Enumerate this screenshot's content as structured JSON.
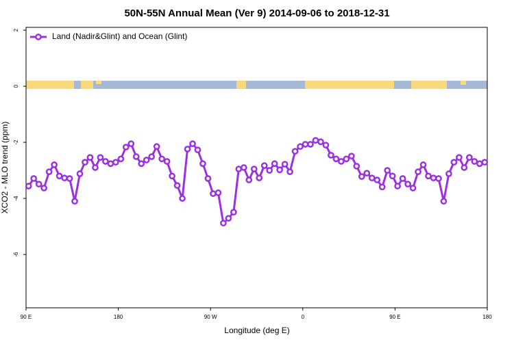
{
  "chart_data": {
    "type": "line",
    "title": "50N-55N Annual Mean (Ver 9)   2014-09-06 to 2018-12-31",
    "x_label": "Longitude (deg E)",
    "y_label": "XCO2 - MLO trend (ppm)",
    "xlim": [
      90,
      540
    ],
    "xticks": [
      {
        "value": 90,
        "label": "90 E"
      },
      180,
      {
        "value": 270,
        "label": "90 W"
      },
      {
        "value": 360,
        "label": "0"
      },
      {
        "value": 450,
        "label": "90 E"
      },
      {
        "value": 540,
        "label": "180"
      }
    ],
    "ylim": [
      -7.9,
      2.1
    ],
    "yticks": [
      2,
      0,
      -2,
      -4,
      -6
    ],
    "legend": "upper left",
    "series": [
      {
        "name": "Land (Nadir&Glint) and Ocean (Glint)",
        "color": "#9b30e0",
        "x": [
          92.5,
          97.5,
          102.5,
          107.5,
          112.5,
          117.5,
          122.5,
          127.5,
          132.5,
          137.5,
          142.5,
          147.5,
          152.5,
          157.5,
          162.5,
          167.5,
          172.5,
          177.5,
          182.5,
          187.5,
          192.5,
          197.5,
          202.5,
          207.5,
          212.5,
          217.5,
          222.5,
          227.5,
          232.5,
          237.5,
          242.5,
          247.5,
          252.5,
          257.5,
          262.5,
          267.5,
          272.5,
          277.5,
          282.5,
          287.5,
          292.5,
          297.5,
          302.5,
          307.5,
          312.5,
          317.5,
          322.5,
          327.5,
          332.5,
          337.5,
          342.5,
          347.5,
          352.5,
          357.5,
          362.5,
          367.5,
          372.5,
          377.5,
          382.5,
          387.5,
          392.5,
          397.5,
          402.5,
          407.5,
          412.5,
          417.5,
          422.5,
          427.5,
          432.5,
          437.5,
          442.5,
          447.5,
          452.5,
          457.5,
          462.5,
          467.5,
          472.5,
          477.5,
          482.5,
          487.5,
          492.5,
          497.5,
          502.5,
          507.5,
          512.5,
          517.5,
          522.5,
          527.5,
          532.5,
          537.5
        ],
        "values": [
          -3.56,
          -3.29,
          -3.49,
          -3.63,
          -3.05,
          -2.8,
          -3.2,
          -3.27,
          -3.29,
          -4.1,
          -3.12,
          -2.71,
          -2.54,
          -2.9,
          -2.54,
          -2.68,
          -2.76,
          -2.71,
          -2.59,
          -2.17,
          -2.05,
          -2.51,
          -2.76,
          -2.63,
          -2.51,
          -2.15,
          -2.59,
          -2.68,
          -3.2,
          -3.54,
          -4.0,
          -2.24,
          -2.05,
          -2.27,
          -2.76,
          -3.29,
          -3.83,
          -3.8,
          -4.88,
          -4.71,
          -4.49,
          -2.95,
          -2.9,
          -3.34,
          -2.95,
          -3.27,
          -2.83,
          -3.0,
          -2.76,
          -2.98,
          -2.78,
          -3.05,
          -2.32,
          -2.15,
          -2.07,
          -2.07,
          -1.93,
          -1.98,
          -2.1,
          -2.46,
          -2.59,
          -2.68,
          -2.59,
          -2.49,
          -2.85,
          -3.22,
          -3.1,
          -3.27,
          -3.34,
          -3.59,
          -3.0,
          -3.2,
          -3.56,
          -3.29,
          -3.49,
          -3.63,
          -3.05,
          -2.8,
          -3.2,
          -3.27,
          -3.29,
          -4.1,
          -3.12,
          -2.71,
          -2.54,
          -2.9,
          -2.54,
          -2.68,
          -2.76,
          -2.71
        ]
      }
    ]
  }
}
